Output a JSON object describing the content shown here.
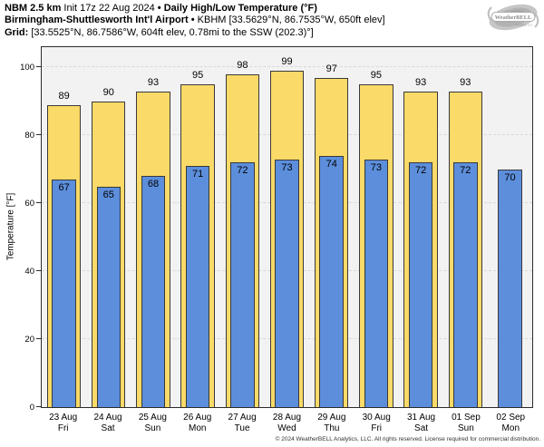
{
  "header": {
    "line1": {
      "model": "NBM 2.5 km",
      "init": "Init 17z 22 Aug 2024",
      "sep": "•",
      "title": "Daily High/Low Temperature (°F)"
    },
    "line2": {
      "station": "Birmingham-Shuttlesworth Int'l Airport",
      "sep": "•",
      "station_id": "KBHM [33.5629°N, 86.7535°W, 650ft elev]"
    },
    "line3": {
      "label": "Grid:",
      "value": "[33.5525°N, 86.7586°W, 604ft elev, 0.78mi to the SSW (202.3)°]"
    }
  },
  "logo": {
    "name": "WeatherBELL",
    "sub": "Analytics LLC"
  },
  "chart_data": {
    "type": "bar",
    "title": "Daily High/Low Temperature (°F)",
    "subtitle": "NBM 2.5 km Init 17z 22 Aug 2024 • KBHM Birmingham-Shuttlesworth Int'l Airport",
    "categories": [
      {
        "date": "23 Aug",
        "day": "Fri"
      },
      {
        "date": "24 Aug",
        "day": "Sat"
      },
      {
        "date": "25 Aug",
        "day": "Sun"
      },
      {
        "date": "26 Aug",
        "day": "Mon"
      },
      {
        "date": "27 Aug",
        "day": "Tue"
      },
      {
        "date": "28 Aug",
        "day": "Wed"
      },
      {
        "date": "29 Aug",
        "day": "Thu"
      },
      {
        "date": "30 Aug",
        "day": "Fri"
      },
      {
        "date": "31 Aug",
        "day": "Sat"
      },
      {
        "date": "01 Sep",
        "day": "Sun"
      },
      {
        "date": "02 Sep",
        "day": "Mon"
      }
    ],
    "series": [
      {
        "name": "High",
        "color": "#FADA68",
        "border": "#3a3a3a",
        "values": [
          89,
          90,
          93,
          95,
          98,
          99,
          97,
          95,
          93,
          93,
          null
        ]
      },
      {
        "name": "Low",
        "color": "#5C8EDC",
        "border": "#3a3a3a",
        "values": [
          67,
          65,
          68,
          71,
          72,
          73,
          74,
          73,
          72,
          72,
          70
        ]
      }
    ],
    "xlabel": "",
    "ylabel": "Temperature [°F]",
    "ylim": [
      0,
      106
    ],
    "yticks": [
      0,
      20,
      40,
      60,
      80,
      100
    ],
    "grid": true,
    "plot_bg": "#f2f2f2",
    "gridline_color": "#d9d9d9"
  },
  "footer": {
    "copyright": "© 2024 WeatherBELL Analytics, LLC. All rights reserved. License required for commercial distribution."
  }
}
